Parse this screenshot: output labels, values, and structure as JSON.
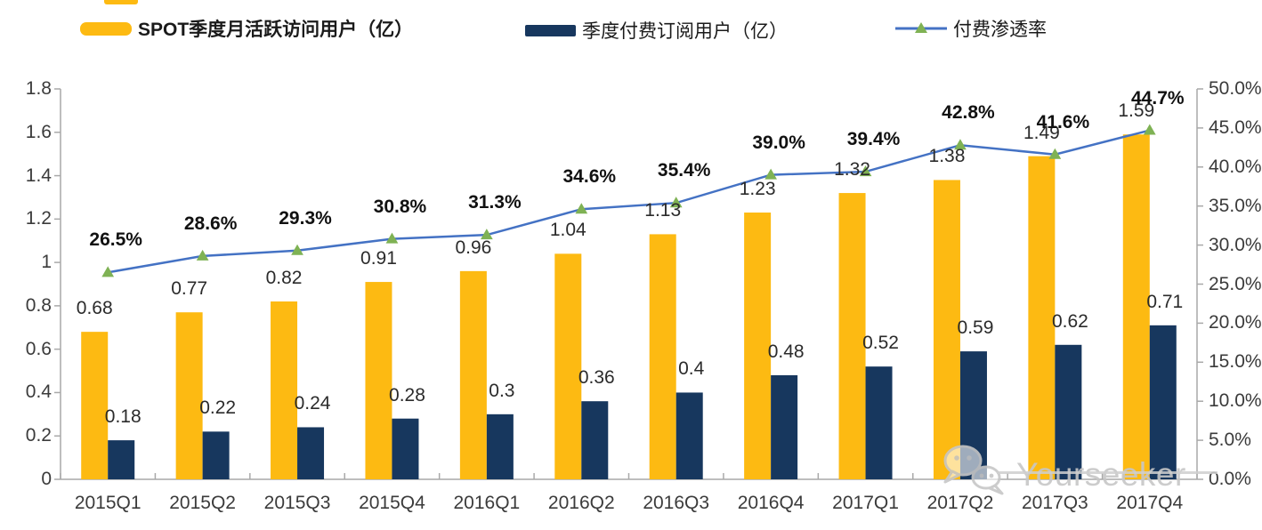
{
  "watermark": {
    "text": "Yourseeker"
  },
  "chart_data": {
    "type": "bar+line",
    "title": "",
    "categories": [
      "2015Q1",
      "2015Q2",
      "2015Q3",
      "2015Q4",
      "2016Q1",
      "2016Q2",
      "2016Q3",
      "2016Q4",
      "2017Q1",
      "2017Q2",
      "2017Q3",
      "2017Q4"
    ],
    "series": [
      {
        "name": "SPOT季度月活跃访问用户（亿）",
        "type": "bar",
        "axis": "left",
        "color": "#FDBA12",
        "values": [
          0.68,
          0.77,
          0.82,
          0.91,
          0.96,
          1.04,
          1.13,
          1.23,
          1.32,
          1.38,
          1.49,
          1.59
        ],
        "labels": [
          "0.68",
          "0.77",
          "0.82",
          "0.91",
          "0.96",
          "1.04",
          "1.13",
          "1.23",
          "1.32",
          "1.38",
          "1.49",
          "1.59"
        ]
      },
      {
        "name": "季度付费订阅用户（亿）",
        "type": "bar",
        "axis": "left",
        "color": "#17375E",
        "values": [
          0.18,
          0.22,
          0.24,
          0.28,
          0.3,
          0.36,
          0.4,
          0.48,
          0.52,
          0.59,
          0.62,
          0.71
        ],
        "labels": [
          "0.18",
          "0.22",
          "0.24",
          "0.28",
          "0.3",
          "0.36",
          "0.4",
          "0.48",
          "0.52",
          "0.59",
          "0.62",
          "0.71"
        ]
      },
      {
        "name": "付费渗透率",
        "type": "line",
        "axis": "right",
        "color": "#4472C4",
        "marker": "triangle",
        "marker_color": "#7FB254",
        "values": [
          26.5,
          28.6,
          29.3,
          30.8,
          31.3,
          34.6,
          35.4,
          39.0,
          39.4,
          42.8,
          41.6,
          44.7
        ],
        "labels": [
          "26.5%",
          "28.6%",
          "29.3%",
          "30.8%",
          "31.3%",
          "34.6%",
          "35.4%",
          "39.0%",
          "39.4%",
          "42.8%",
          "41.6%",
          "44.7%"
        ]
      }
    ],
    "left_axis": {
      "min": 0,
      "max": 1.8,
      "ticks": [
        "0",
        "0.2",
        "0.4",
        "0.6",
        "0.8",
        "1",
        "1.2",
        "1.4",
        "1.6",
        "1.8"
      ]
    },
    "right_axis": {
      "min": 0,
      "max": 50,
      "ticks": [
        "0.0%",
        "5.0%",
        "10.0%",
        "15.0%",
        "20.0%",
        "25.0%",
        "30.0%",
        "35.0%",
        "40.0%",
        "45.0%",
        "50.0%"
      ]
    },
    "grid": false,
    "legend_position": "top",
    "axis_color": "#A9A9A9"
  }
}
